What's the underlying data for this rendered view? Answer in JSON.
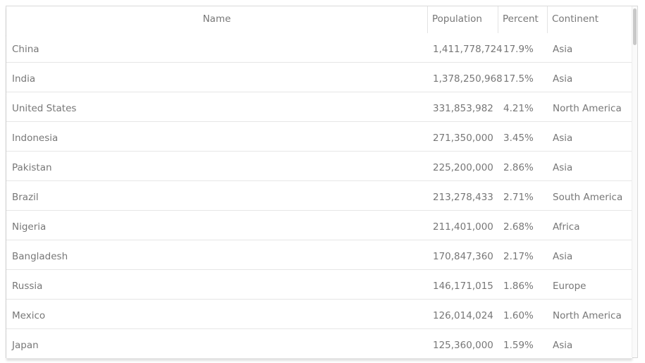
{
  "table": {
    "columns": [
      "Name",
      "Population",
      "Percent",
      "Continent"
    ],
    "rows": [
      [
        "China",
        "1,411,778,724",
        "17.9%",
        "Asia"
      ],
      [
        "India",
        "1,378,250,968",
        "17.5%",
        "Asia"
      ],
      [
        "United States",
        "331,853,982",
        "4.21%",
        "North America"
      ],
      [
        "Indonesia",
        "271,350,000",
        "3.45%",
        "Asia"
      ],
      [
        "Pakistan",
        "225,200,000",
        "2.86%",
        "Asia"
      ],
      [
        "Brazil",
        "213,278,433",
        "2.71%",
        "South America"
      ],
      [
        "Nigeria",
        "211,401,000",
        "2.68%",
        "Africa"
      ],
      [
        "Bangladesh",
        "170,847,360",
        "2.17%",
        "Asia"
      ],
      [
        "Russia",
        "146,171,015",
        "1.86%",
        "Europe"
      ],
      [
        "Mexico",
        "126,014,024",
        "1.60%",
        "North America"
      ],
      [
        "Japan",
        "125,360,000",
        "1.59%",
        "Asia"
      ]
    ]
  }
}
